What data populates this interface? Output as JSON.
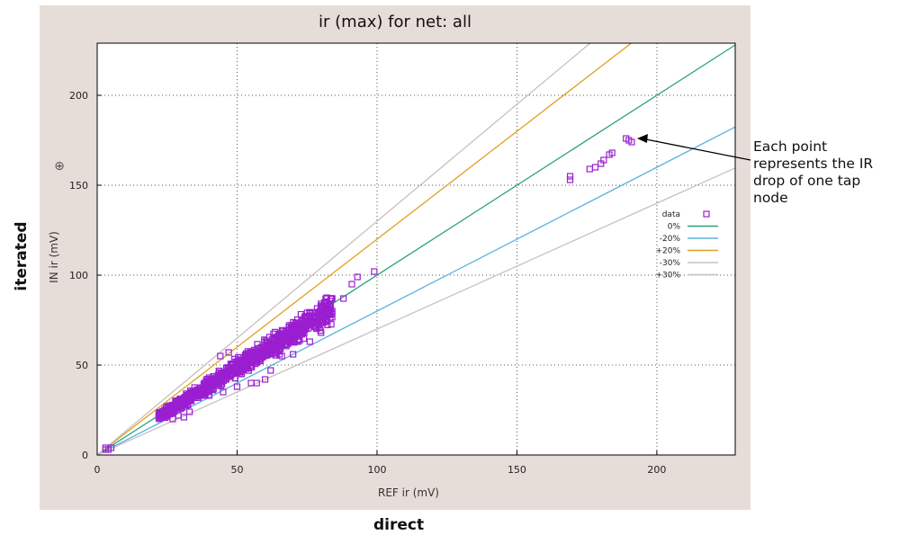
{
  "outer_labels": {
    "y": "iterated",
    "x": "direct"
  },
  "annotation": "Each point represents the IR drop of one tap node",
  "chart_data": {
    "type": "scatter",
    "title": "ir (max) for net: all",
    "xlabel": "REF ir (mV)",
    "ylabel": "IN ir (mV)",
    "xlim": [
      0,
      228
    ],
    "ylim": [
      0,
      229
    ],
    "xticks": [
      0,
      50,
      100,
      150,
      200
    ],
    "yticks": [
      0,
      50,
      100,
      150,
      200
    ],
    "grid": true,
    "legend_position": "right",
    "colors": {
      "data": "#9a1fd0",
      "0%": "#2aa37a",
      "-20%": "#5ab0e0",
      "+20%": "#e0a020",
      "-30%": "#c8c0c0",
      "+30%": "#c8c0c0"
    },
    "series": [
      {
        "name": "data",
        "marker": "square",
        "points": [
          [
            3,
            3
          ],
          [
            3,
            4
          ],
          [
            4,
            3
          ],
          [
            5,
            4
          ],
          [
            22,
            23
          ],
          [
            24,
            25
          ],
          [
            25,
            24
          ],
          [
            28,
            26
          ],
          [
            27,
            20
          ],
          [
            29,
            22
          ],
          [
            31,
            21
          ],
          [
            33,
            24
          ],
          [
            30,
            31
          ],
          [
            33,
            33
          ],
          [
            35,
            34
          ],
          [
            38,
            36
          ],
          [
            40,
            43
          ],
          [
            42,
            41
          ],
          [
            45,
            44
          ],
          [
            48,
            46
          ],
          [
            50,
            52
          ],
          [
            52,
            50
          ],
          [
            55,
            54
          ],
          [
            58,
            57
          ],
          [
            60,
            60
          ],
          [
            62,
            61
          ],
          [
            65,
            64
          ],
          [
            68,
            66
          ],
          [
            70,
            70
          ],
          [
            72,
            71
          ],
          [
            75,
            74
          ],
          [
            78,
            77
          ],
          [
            80,
            80
          ],
          [
            82,
            81
          ],
          [
            84,
            80
          ],
          [
            83,
            78
          ],
          [
            44,
            55
          ],
          [
            47,
            57
          ],
          [
            62,
            47
          ],
          [
            66,
            55
          ],
          [
            70,
            56
          ],
          [
            76,
            63
          ],
          [
            74,
            68
          ],
          [
            80,
            68
          ],
          [
            55,
            40
          ],
          [
            57,
            40
          ],
          [
            60,
            42
          ],
          [
            45,
            35
          ],
          [
            50,
            38
          ],
          [
            40,
            33
          ],
          [
            84,
            87
          ],
          [
            88,
            87
          ],
          [
            91,
            95
          ],
          [
            93,
            99
          ],
          [
            99,
            102
          ],
          [
            169,
            153
          ],
          [
            169,
            155
          ],
          [
            176,
            159
          ],
          [
            178,
            160
          ],
          [
            180,
            162
          ],
          [
            181,
            164
          ],
          [
            183,
            167
          ],
          [
            184,
            168
          ],
          [
            189,
            176
          ],
          [
            190,
            175
          ],
          [
            191,
            174
          ]
        ]
      },
      {
        "name": "0%",
        "slope": 1.0
      },
      {
        "name": "-20%",
        "slope": 0.8
      },
      {
        "name": "+20%",
        "slope": 1.2
      },
      {
        "name": "-30%",
        "slope": 0.7
      },
      {
        "name": "+30%",
        "slope": 1.3
      }
    ],
    "dense_band": {
      "x_from": 22,
      "x_to": 84,
      "center_slope": 0.97,
      "spread": 0.1
    }
  }
}
